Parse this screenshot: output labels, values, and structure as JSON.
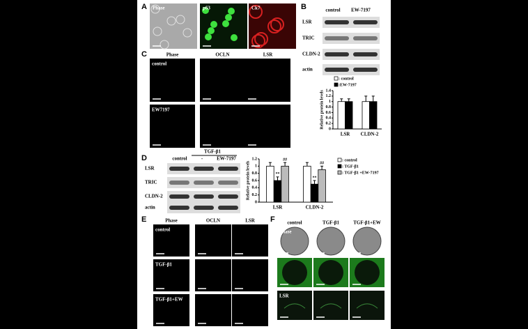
{
  "panel_labels": [
    "A",
    "B",
    "C",
    "D",
    "E",
    "F"
  ],
  "A": {
    "columns": [
      "Phase",
      "p63",
      "Ck7"
    ]
  },
  "B": {
    "blot": {
      "columns": [
        "control",
        "EW-7197"
      ],
      "rows": [
        "LSR",
        "TRIC",
        "CLDN-2",
        "actin"
      ]
    }
  },
  "C": {
    "columns": [
      "Phase",
      "OCLN",
      "LSR"
    ],
    "rows": [
      "control",
      "EW7197"
    ]
  },
  "D": {
    "blot": {
      "group": "TGF-β1",
      "columns": [
        "control",
        "-",
        "EW-7197"
      ],
      "rows": [
        "LSR",
        "TRIC",
        "CLDN-2",
        "actin"
      ]
    }
  },
  "E": {
    "columns": [
      "Phase",
      "OCLN",
      "LSR"
    ],
    "rows": [
      "control",
      "TGF-β1",
      "TGF-β1+EW"
    ]
  },
  "F": {
    "columns": [
      "control",
      "TGF-β1",
      "TGF-β1+EW"
    ],
    "rows": [
      "Phase",
      null,
      "LSR"
    ]
  },
  "chart_data": [
    {
      "type": "bar",
      "ylabel": "Relative protein levels",
      "categories": [
        "LSR",
        "CLDN-2"
      ],
      "series": [
        {
          "name": ": control",
          "color": "#ffffff",
          "values": [
            1.0,
            1.0
          ],
          "errors": [
            0.1,
            0.2
          ]
        },
        {
          "name": ":EW-7197",
          "color": "#000000",
          "values": [
            1.0,
            1.0
          ],
          "errors": [
            0.1,
            0.2
          ]
        }
      ],
      "ylim": [
        0,
        1.4
      ],
      "yticks": [
        0,
        0.2,
        0.4,
        0.6,
        0.8,
        1,
        1.2,
        1.4
      ]
    },
    {
      "type": "bar",
      "ylabel": "Relative protein levels",
      "categories": [
        "LSR",
        "CLDN-2"
      ],
      "series": [
        {
          "name": ": control",
          "color": "#ffffff",
          "values": [
            1.0,
            1.0
          ],
          "errors": [
            0.1,
            0.1
          ]
        },
        {
          "name": ": TGF-β1",
          "color": "#000000",
          "values": [
            0.6,
            0.5
          ],
          "errors": [
            0.1,
            0.1
          ],
          "sig": [
            "**",
            "**"
          ]
        },
        {
          "name": ": TGF-β1 +EW-7197",
          "color": "#bbbbbb",
          "values": [
            1.0,
            0.9
          ],
          "errors": [
            0.1,
            0.1
          ],
          "sig": [
            "##",
            "##"
          ]
        }
      ],
      "ylim": [
        0,
        1.2
      ],
      "yticks": [
        0,
        0.2,
        0.4,
        0.6,
        0.8,
        1,
        1.2
      ]
    }
  ]
}
